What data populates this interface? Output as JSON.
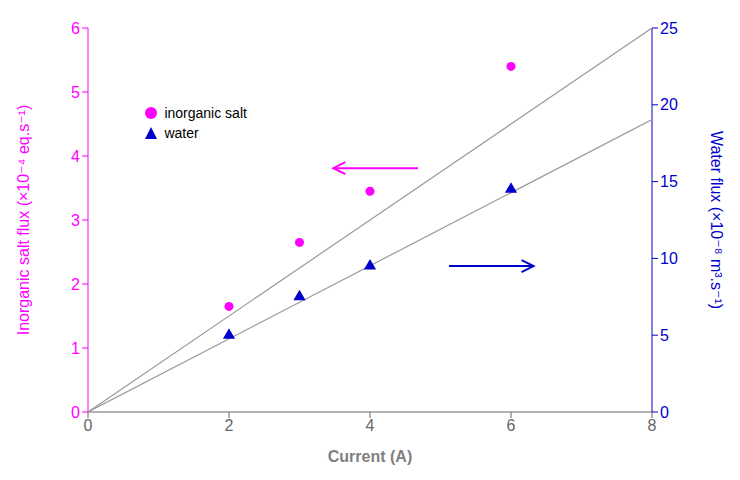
{
  "chart_data": {
    "type": "scatter",
    "xlabel": "Current (A)",
    "ylabel": "Inorganic salt flux (×10⁻⁴ eq.s⁻¹)",
    "y2label": "Water flux (×10⁻⁸ m³.s⁻¹)",
    "xlim": [
      0,
      8
    ],
    "xticks": [
      0,
      2,
      4,
      6,
      8
    ],
    "ylim": [
      0,
      6
    ],
    "yticks": [
      0,
      1,
      2,
      3,
      4,
      5,
      6
    ],
    "y2lim": [
      0,
      25
    ],
    "y2ticks": [
      0,
      5,
      10,
      15,
      20,
      25
    ],
    "grid": false,
    "legend": "upper left",
    "series": [
      {
        "type": "line",
        "color": "#999999",
        "x": [
          0,
          8
        ],
        "values": [
          0,
          6
        ]
      },
      {
        "type": "line",
        "axis": "y2",
        "color": "#999999",
        "x": [
          0,
          8
        ],
        "values": [
          0,
          19.04
        ]
      },
      {
        "name": "inorganic salt",
        "type": "scatter",
        "color": "#FF00FF",
        "marker": "circle",
        "x": [
          2,
          3,
          4,
          6
        ],
        "values": [
          1.65,
          2.65,
          3.45,
          5.4
        ]
      },
      {
        "name": "water",
        "type": "scatter",
        "axis": "y2",
        "color": "#0000CC",
        "marker": "triangle",
        "x": [
          2,
          3,
          4,
          6
        ],
        "values": [
          5.0,
          7.5,
          9.5,
          14.5
        ]
      }
    ]
  }
}
